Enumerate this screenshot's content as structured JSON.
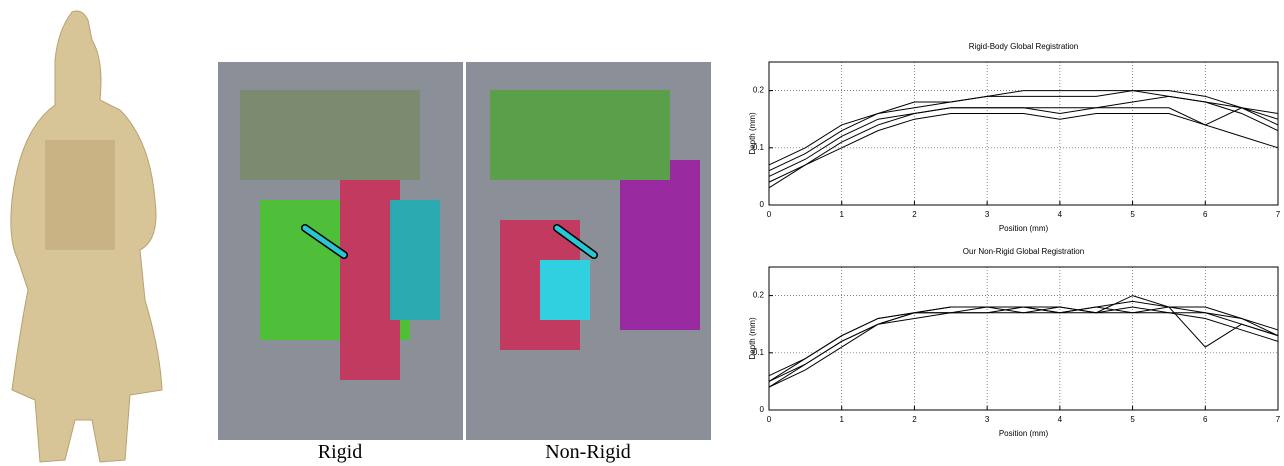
{
  "figure": {
    "panels": [
      {
        "caption": "Rigid"
      },
      {
        "caption": "Non-Rigid"
      }
    ]
  },
  "chart_data": [
    {
      "type": "line",
      "title": "Rigid-Body Global Registration",
      "x_label": "Position (mm)",
      "y_label": "Depth (mm)",
      "x": [
        0,
        0.5,
        1,
        1.5,
        2,
        2.5,
        3,
        3.5,
        4,
        4.5,
        5,
        5.5,
        6,
        6.5,
        7
      ],
      "series": [
        {
          "color": "#000000",
          "values": [
            0.07,
            0.1,
            0.14,
            0.16,
            0.17,
            0.18,
            0.19,
            0.2,
            0.2,
            0.2,
            0.2,
            0.19,
            0.18,
            0.17,
            0.15
          ]
        },
        {
          "color": "#000000",
          "values": [
            0.06,
            0.09,
            0.13,
            0.16,
            0.18,
            0.18,
            0.19,
            0.19,
            0.19,
            0.19,
            0.2,
            0.2,
            0.19,
            0.17,
            0.14
          ]
        },
        {
          "color": "#000000",
          "values": [
            0.05,
            0.08,
            0.12,
            0.15,
            0.16,
            0.17,
            0.17,
            0.17,
            0.17,
            0.17,
            0.18,
            0.19,
            0.18,
            0.16,
            0.13
          ]
        },
        {
          "color": "#000000",
          "values": [
            0.04,
            0.07,
            0.1,
            0.13,
            0.15,
            0.16,
            0.16,
            0.16,
            0.15,
            0.16,
            0.16,
            0.16,
            0.14,
            0.12,
            0.1
          ]
        },
        {
          "color": "#000000",
          "values": [
            0.03,
            0.07,
            0.11,
            0.14,
            0.16,
            0.17,
            0.17,
            0.17,
            0.16,
            0.17,
            0.17,
            0.17,
            0.14,
            0.17,
            0.16
          ]
        }
      ],
      "xlim": [
        0,
        7
      ],
      "xticks": [
        0,
        1,
        2,
        3,
        4,
        5,
        6,
        7
      ],
      "ylim": [
        0,
        0.25
      ],
      "yticks": [
        0,
        0.1,
        0.2
      ],
      "grid": true
    },
    {
      "type": "line",
      "title": "Our Non-Rigid Global Registration",
      "x_label": "Position (mm)",
      "y_label": "Depth (mm)",
      "x": [
        0,
        0.5,
        1,
        1.5,
        2,
        2.5,
        3,
        3.5,
        4,
        4.5,
        5,
        5.5,
        6,
        6.5,
        7
      ],
      "series": [
        {
          "color": "#000000",
          "values": [
            0.06,
            0.09,
            0.13,
            0.16,
            0.17,
            0.18,
            0.18,
            0.18,
            0.17,
            0.18,
            0.19,
            0.18,
            0.18,
            0.16,
            0.14
          ]
        },
        {
          "color": "#000000",
          "values": [
            0.05,
            0.08,
            0.12,
            0.15,
            0.17,
            0.17,
            0.17,
            0.17,
            0.17,
            0.17,
            0.18,
            0.17,
            0.17,
            0.15,
            0.13
          ]
        },
        {
          "color": "#000000",
          "values": [
            0.04,
            0.08,
            0.12,
            0.15,
            0.16,
            0.17,
            0.17,
            0.18,
            0.17,
            0.18,
            0.17,
            0.18,
            0.17,
            0.16,
            0.13
          ]
        },
        {
          "color": "#000000",
          "values": [
            0.05,
            0.09,
            0.13,
            0.16,
            0.17,
            0.17,
            0.18,
            0.17,
            0.18,
            0.17,
            0.17,
            0.17,
            0.16,
            0.14,
            0.12
          ]
        },
        {
          "color": "#000000",
          "values": [
            0.04,
            0.07,
            0.11,
            0.15,
            0.17,
            0.18,
            0.18,
            0.18,
            0.18,
            0.17,
            0.2,
            0.18,
            0.11,
            0.15,
            0.13
          ]
        }
      ],
      "xlim": [
        0,
        7
      ],
      "xticks": [
        0,
        1,
        2,
        3,
        4,
        5,
        6,
        7
      ],
      "ylim": [
        0,
        0.25
      ],
      "yticks": [
        0,
        0.1,
        0.2
      ],
      "grid": true
    }
  ]
}
